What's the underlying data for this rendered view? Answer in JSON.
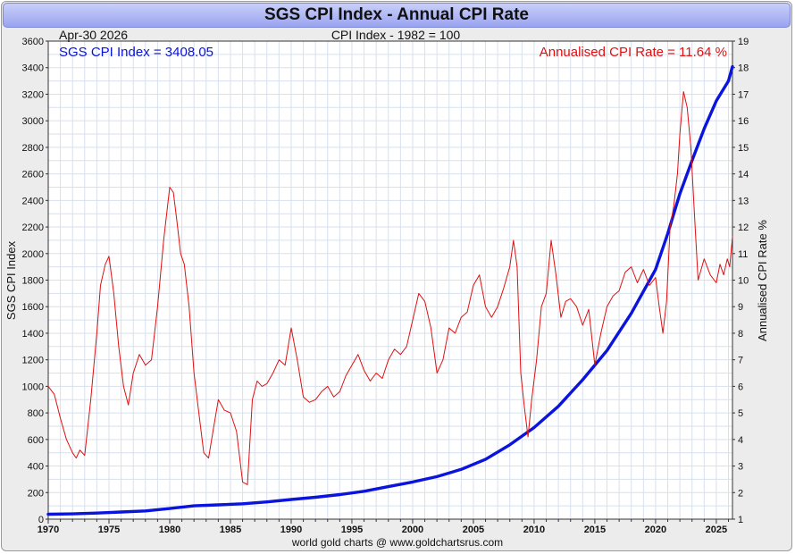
{
  "header": {
    "title": "SGS CPI Index - Annual CPI Rate"
  },
  "footer": {
    "credit": "world gold charts @ www.goldchartsrus.com"
  },
  "colors": {
    "index_series": "#0a14dc",
    "rate_series": "#e01010",
    "grid": "#d8e0ee",
    "plot_bg": "#ffffff"
  },
  "chart_data": {
    "type": "line",
    "title": "SGS CPI Index - Annual CPI Rate",
    "subtitle": "CPI Index - 1982 = 100",
    "date_label": "Apr-30 2026",
    "grid": true,
    "legend_left": "SGS CPI Index = 3408.05",
    "legend_right": "Annualised CPI Rate = 11.64 %",
    "xlim": [
      1970,
      2026.33
    ],
    "x_ticks": [
      "1970",
      "1975",
      "1980",
      "1985",
      "1990",
      "1995",
      "2000",
      "2005",
      "2010",
      "2015",
      "2020",
      "2025"
    ],
    "y_left": {
      "label": "SGS CPI Index",
      "range": [
        0,
        3600
      ],
      "ticks": [
        "0",
        "200",
        "400",
        "600",
        "800",
        "1000",
        "1200",
        "1400",
        "1600",
        "1800",
        "2000",
        "2200",
        "2400",
        "2600",
        "2800",
        "3000",
        "3200",
        "3400",
        "3600"
      ]
    },
    "y_right": {
      "label": "Annualised CPI Rate %",
      "range": [
        1,
        19
      ],
      "ticks": [
        "1",
        "2",
        "3",
        "4",
        "5",
        "6",
        "7",
        "8",
        "9",
        "10",
        "11",
        "12",
        "13",
        "14",
        "15",
        "16",
        "17",
        "18",
        "19"
      ]
    },
    "series": [
      {
        "name": "SGS CPI Index",
        "axis": "left",
        "x": [
          1970,
          1972,
          1974,
          1976,
          1978,
          1980,
          1982,
          1984,
          1986,
          1988,
          1990,
          1992,
          1994,
          1996,
          1998,
          2000,
          2002,
          2004,
          2006,
          2008,
          2010,
          2012,
          2014,
          2016,
          2018,
          2020,
          2021,
          2022,
          2023,
          2024,
          2025,
          2026,
          2026.33
        ],
        "values": [
          37,
          40,
          46,
          54,
          62,
          80,
          100,
          108,
          116,
          130,
          148,
          165,
          185,
          210,
          245,
          280,
          320,
          375,
          450,
          560,
          690,
          850,
          1050,
          1270,
          1550,
          1880,
          2150,
          2450,
          2700,
          2940,
          3150,
          3300,
          3408
        ]
      },
      {
        "name": "Annualised CPI Rate",
        "axis": "right",
        "x": [
          1970,
          1970.5,
          1971,
          1971.5,
          1972,
          1972.3,
          1972.6,
          1973,
          1973.5,
          1974,
          1974.3,
          1974.7,
          1975,
          1975.4,
          1975.8,
          1976.2,
          1976.6,
          1977,
          1977.5,
          1978,
          1978.5,
          1979,
          1979.5,
          1980,
          1980.3,
          1980.6,
          1980.9,
          1981.2,
          1981.6,
          1982,
          1982.4,
          1982.8,
          1983.2,
          1983.6,
          1984,
          1984.5,
          1985,
          1985.5,
          1986,
          1986.4,
          1986.8,
          1987.2,
          1987.6,
          1988,
          1988.5,
          1989,
          1989.5,
          1990,
          1990.5,
          1991,
          1991.5,
          1992,
          1992.5,
          1993,
          1993.5,
          1994,
          1994.5,
          1995,
          1995.5,
          1996,
          1996.5,
          1997,
          1997.5,
          1998,
          1998.5,
          1999,
          1999.5,
          2000,
          2000.5,
          2001,
          2001.5,
          2002,
          2002.5,
          2003,
          2003.5,
          2004,
          2004.5,
          2005,
          2005.5,
          2006,
          2006.5,
          2007,
          2007.5,
          2008,
          2008.3,
          2008.6,
          2008.9,
          2009.2,
          2009.5,
          2009.8,
          2010.2,
          2010.6,
          2011,
          2011.4,
          2011.8,
          2012.2,
          2012.6,
          2013,
          2013.5,
          2014,
          2014.5,
          2015,
          2015.5,
          2016,
          2016.5,
          2017,
          2017.5,
          2018,
          2018.5,
          2019,
          2019.5,
          2020,
          2020.3,
          2020.6,
          2020.9,
          2021.2,
          2021.5,
          2021.8,
          2022,
          2022.3,
          2022.6,
          2022.9,
          2023.2,
          2023.5,
          2024,
          2024.5,
          2025,
          2025.3,
          2025.6,
          2025.9,
          2026.1,
          2026.33
        ],
        "values": [
          6.0,
          5.7,
          4.8,
          4.0,
          3.5,
          3.3,
          3.6,
          3.4,
          5.5,
          8.0,
          9.8,
          10.6,
          10.9,
          9.5,
          7.5,
          6.0,
          5.3,
          6.5,
          7.2,
          6.8,
          7.0,
          9.0,
          11.5,
          13.5,
          13.3,
          12.2,
          11.0,
          10.6,
          9.0,
          6.5,
          5.0,
          3.5,
          3.3,
          4.4,
          5.5,
          5.1,
          5.0,
          4.3,
          2.4,
          2.3,
          5.5,
          6.2,
          6.0,
          6.1,
          6.5,
          7.0,
          6.8,
          8.2,
          7.0,
          5.6,
          5.4,
          5.5,
          5.8,
          6.0,
          5.6,
          5.8,
          6.4,
          6.8,
          7.2,
          6.6,
          6.2,
          6.5,
          6.3,
          7.0,
          7.4,
          7.2,
          7.5,
          8.5,
          9.5,
          9.2,
          8.2,
          6.5,
          7.0,
          8.2,
          8.0,
          8.6,
          8.8,
          9.8,
          10.2,
          9.0,
          8.6,
          9.0,
          9.7,
          10.5,
          11.5,
          10.5,
          6.5,
          5.2,
          4.1,
          5.5,
          7.0,
          9.0,
          9.5,
          11.5,
          10.2,
          8.6,
          9.2,
          9.3,
          9.0,
          8.3,
          8.9,
          6.8,
          8.0,
          9.0,
          9.4,
          9.6,
          10.3,
          10.5,
          9.9,
          10.4,
          9.8,
          10.1,
          9.0,
          8.0,
          9.2,
          12.0,
          12.8,
          14.0,
          15.5,
          17.1,
          16.5,
          15.0,
          12.5,
          10.0,
          10.8,
          10.2,
          9.9,
          10.6,
          10.2,
          10.8,
          10.5,
          11.64
        ]
      }
    ]
  }
}
